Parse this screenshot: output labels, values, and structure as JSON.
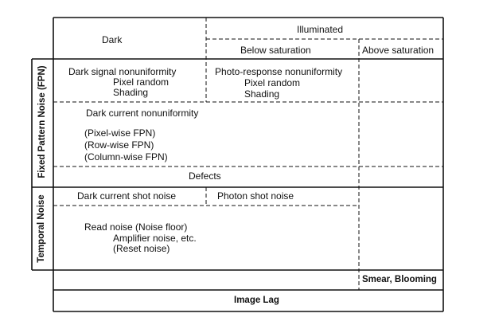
{
  "header": {
    "dark": "Dark",
    "illuminated": "Illuminated",
    "below_saturation": "Below saturation",
    "above_saturation": "Above saturation"
  },
  "row_groups": {
    "fpn": "Fixed Pattern Noise (FPN)",
    "temporal": "Temporal Noise"
  },
  "fpn": {
    "dsnu": "Dark signal nonuniformity",
    "dsnu_pixel_random": "Pixel random",
    "dsnu_shading": "Shading",
    "prnu": "Photo-response nonuniformity",
    "prnu_pixel_random": "Pixel random",
    "prnu_shading": "Shading",
    "dcnu": "Dark current nonuniformity",
    "pixel_wise": "(Pixel-wise FPN)",
    "row_wise": "(Row-wise FPN)",
    "column_wise": "(Column-wise FPN)",
    "defects": "Defects"
  },
  "temporal": {
    "dark_shot": "Dark current shot noise",
    "photon_shot": "Photon shot noise",
    "read_noise": "Read noise (Noise floor)",
    "amplifier": "Amplifier noise, etc.",
    "reset": "(Reset noise)"
  },
  "bottom": {
    "smear": "Smear, Blooming",
    "image_lag": "Image Lag"
  }
}
